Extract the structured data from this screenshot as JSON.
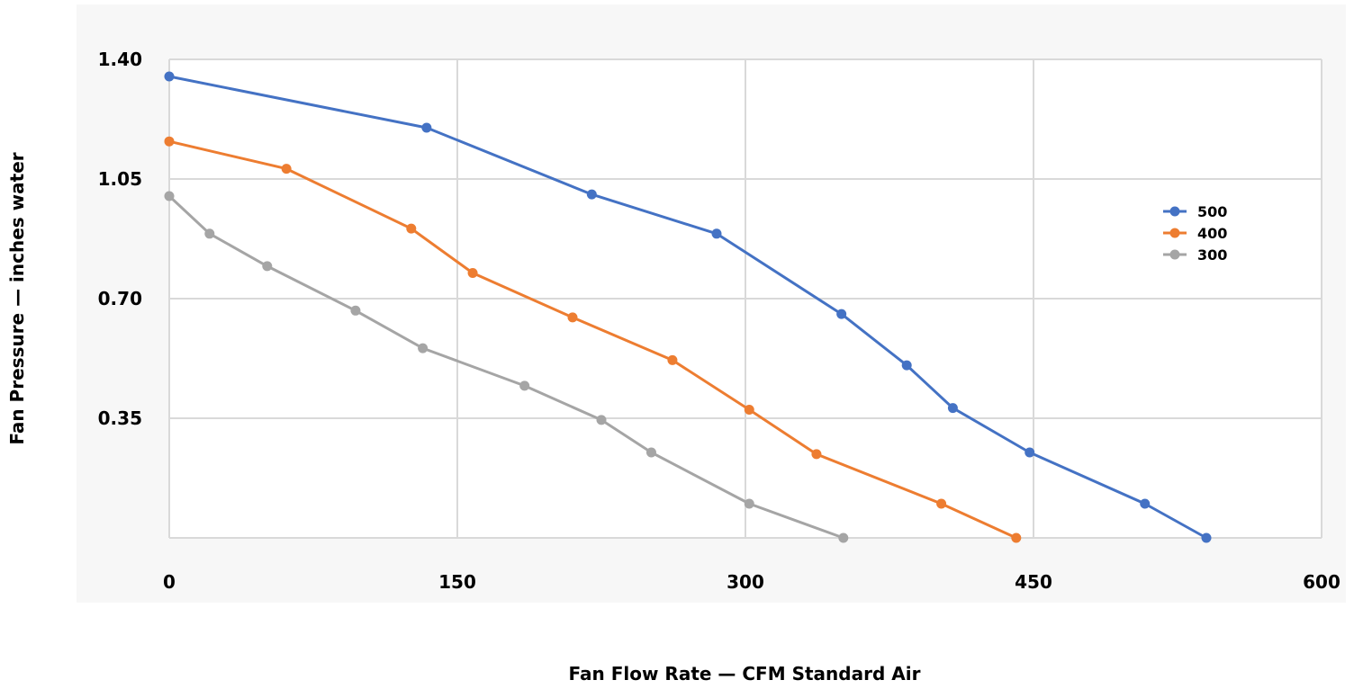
{
  "chart_data": {
    "type": "line",
    "title": "",
    "xlabel": "Fan Flow Rate — CFM Standard Air",
    "ylabel": "Fan Pressure — inches water",
    "xlim": [
      0,
      600
    ],
    "ylim": [
      0,
      1.4
    ],
    "x_ticks": [
      0,
      150,
      300,
      450,
      600
    ],
    "y_ticks": [
      0.35,
      0.7,
      1.05,
      1.4
    ],
    "x_tick_labels": [
      "0",
      "150",
      "300",
      "450",
      "600"
    ],
    "y_tick_labels": [
      "0.35",
      "0.70",
      "1.05",
      "1.40"
    ],
    "grid": true,
    "legend_position": "right",
    "series": [
      {
        "name": "500",
        "color": "#4472C4",
        "points": [
          [
            0,
            1.35
          ],
          [
            134,
            1.2
          ],
          [
            220,
            1.005
          ],
          [
            285,
            0.89
          ],
          [
            350,
            0.655
          ],
          [
            384,
            0.505
          ],
          [
            408,
            0.38
          ],
          [
            448,
            0.25
          ],
          [
            508,
            0.1
          ],
          [
            540,
            0.0
          ]
        ]
      },
      {
        "name": "400",
        "color": "#ED7D31",
        "points": [
          [
            0,
            1.16
          ],
          [
            61,
            1.08
          ],
          [
            126,
            0.905
          ],
          [
            158,
            0.775
          ],
          [
            210,
            0.645
          ],
          [
            262,
            0.52
          ],
          [
            302,
            0.375
          ],
          [
            337,
            0.245
          ],
          [
            402,
            0.1
          ],
          [
            441,
            0.0
          ]
        ]
      },
      {
        "name": "300",
        "color": "#A5A5A5",
        "points": [
          [
            0,
            1.0
          ],
          [
            21,
            0.89
          ],
          [
            51,
            0.795
          ],
          [
            97,
            0.665
          ],
          [
            132,
            0.555
          ],
          [
            185,
            0.445
          ],
          [
            225,
            0.345
          ],
          [
            251,
            0.25
          ],
          [
            302,
            0.1
          ],
          [
            351,
            0.0
          ]
        ]
      }
    ]
  }
}
